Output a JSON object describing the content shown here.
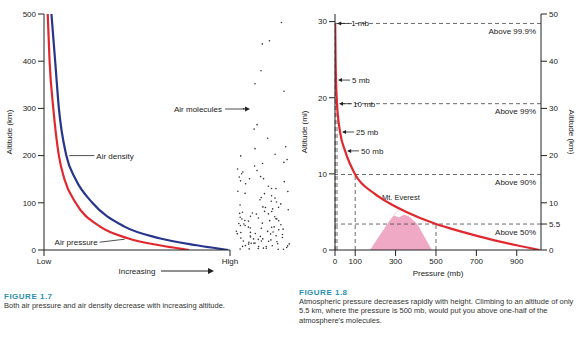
{
  "chart_data": [
    {
      "type": "line",
      "title": "FIGURE 1.7",
      "caption": "Both air pressure and air density decrease with increasing altitude.",
      "x_label": "Increasing",
      "y_label": "Altitude (km)",
      "xlim": [
        0,
        100
      ],
      "xticks": [
        {
          "value": 0,
          "label": "Low"
        },
        {
          "value": 100,
          "label": "High"
        }
      ],
      "ylim": [
        0,
        500
      ],
      "yticks": [
        0,
        100,
        200,
        300,
        400,
        500
      ],
      "series": [
        {
          "name": "Air pressure",
          "color": "#e0282e",
          "x": [
            2,
            3,
            5,
            8,
            11,
            17,
            30,
            45,
            62,
            78
          ],
          "values": [
            500,
            400,
            300,
            200,
            150,
            100,
            50,
            25,
            10,
            0
          ]
        },
        {
          "name": "Air density",
          "color": "#27358c",
          "x": [
            4,
            6,
            8,
            12,
            17,
            26,
            43,
            62,
            82,
            99
          ],
          "values": [
            500,
            400,
            300,
            200,
            150,
            100,
            50,
            25,
            10,
            0
          ]
        }
      ],
      "annotations": [
        {
          "text": "Air molecules"
        }
      ]
    },
    {
      "type": "line",
      "title": "FIGURE 1.8",
      "caption": "Atmospheric pressure decreases rapidly with height. Climbing to an altitude of only 5.5 km, where the pressure is 500 mb, would put you above one-half of the atmosphere's molecules.",
      "x_label": "Pressure (mb)",
      "y_label": "Altitude (mi)",
      "y2_label": "Altitude (km)",
      "xlim": [
        0,
        1020
      ],
      "xticks": [
        0,
        100,
        300,
        500,
        700,
        900
      ],
      "ylim": [
        0,
        31
      ],
      "yticks": [
        0,
        10,
        20,
        30
      ],
      "y2lim": [
        0,
        50
      ],
      "y2ticks": [
        0,
        5.5,
        10,
        20,
        30,
        40,
        50
      ],
      "series": [
        {
          "color": "#e0282e",
          "axis": "y2",
          "x": [
            1,
            2.9,
            5,
            10,
            25,
            50,
            100,
            194,
            265,
            356,
            500,
            617,
            795,
            899,
            1013
          ],
          "values": [
            48,
            40,
            36,
            31,
            25,
            21,
            16,
            12,
            10,
            8,
            5.5,
            4,
            2,
            1,
            0
          ]
        }
      ],
      "levels": [
        {
          "label": "Above 99.9%",
          "altitude": 48,
          "pressure": 1
        },
        {
          "label": "Above 99%",
          "altitude": 31,
          "pressure": 10
        },
        {
          "label": "Above 90%",
          "altitude": 16,
          "pressure": 100
        },
        {
          "label": "Above 50%",
          "altitude": 5.5,
          "pressure": 500
        }
      ],
      "annotations": [
        {
          "text": "1 mb",
          "x": 1,
          "y": 48,
          "axis": "y2"
        },
        {
          "text": "5 mb",
          "x": 5,
          "y": 36,
          "axis": "y2"
        },
        {
          "text": "10 mb",
          "x": 10,
          "y": 31,
          "axis": "y2"
        },
        {
          "text": "25 mb",
          "x": 25,
          "y": 25,
          "axis": "y2"
        },
        {
          "text": "50 mb",
          "x": 50,
          "y": 21,
          "axis": "y2"
        }
      ],
      "landmark": "Mt. Everest"
    }
  ]
}
